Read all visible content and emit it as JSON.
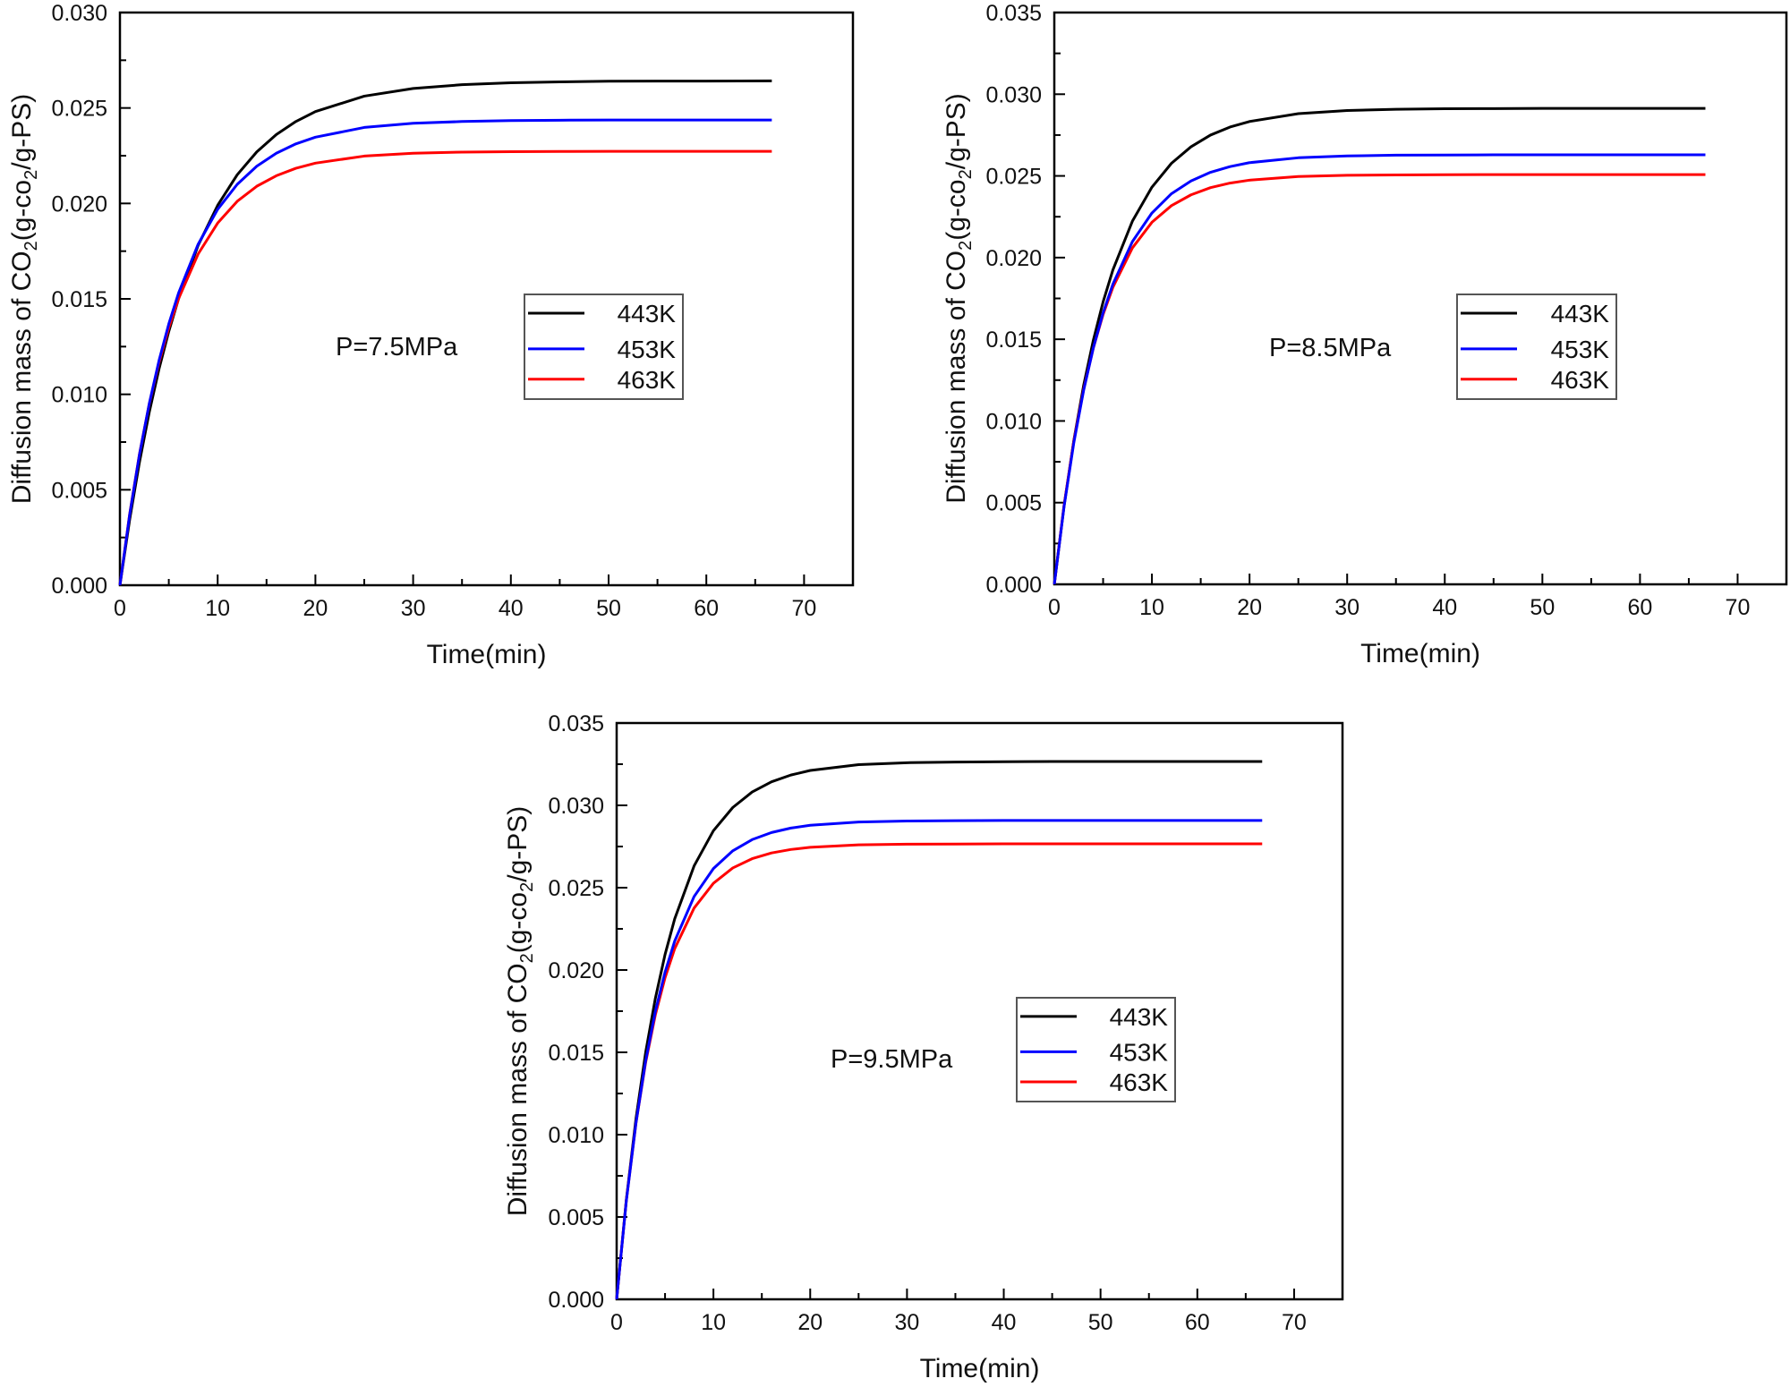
{
  "chart_data": [
    {
      "type": "line",
      "annotation": "P=7.5MPa",
      "xlabel": "Time(min)",
      "ylabel_parts": [
        "Diffusion mass of CO",
        "2",
        "(g-co",
        "2",
        "/g-PS)"
      ],
      "xlim": [
        0,
        75
      ],
      "ylim": [
        0,
        0.03
      ],
      "xticks": [
        0,
        10,
        20,
        30,
        40,
        50,
        60,
        70
      ],
      "xtick_labels": [
        "0",
        "10",
        "20",
        "30",
        "40",
        "50",
        "60",
        "70"
      ],
      "yticks": [
        0,
        0.005,
        0.01,
        0.015,
        0.02,
        0.025,
        0.03
      ],
      "ytick_labels": [
        "0.000",
        "0.005",
        "0.010",
        "0.015",
        "0.020",
        "0.025",
        "0.030"
      ],
      "grid": false,
      "legend_position": "center-right",
      "x": [
        0,
        1,
        2,
        3,
        4,
        5,
        6,
        8,
        10,
        12,
        14,
        16,
        18,
        20,
        25,
        30,
        35,
        40,
        45,
        50,
        55,
        60,
        66.7
      ],
      "series": [
        {
          "name": "443K",
          "color": "#000000",
          "values": [
            0,
            0.00345,
            0.00645,
            0.00906,
            0.01133,
            0.0133,
            0.01501,
            0.0178,
            0.0199,
            0.0215,
            0.0227,
            0.02361,
            0.02429,
            0.02481,
            0.02562,
            0.02602,
            0.02622,
            0.02632,
            0.02637,
            0.0264,
            0.02641,
            0.02641,
            0.02642
          ]
        },
        {
          "name": "453K",
          "color": "#0000ff",
          "values": [
            0,
            0.00371,
            0.00685,
            0.00951,
            0.01177,
            0.01369,
            0.01531,
            0.01786,
            0.01969,
            0.021,
            0.02195,
            0.02263,
            0.02312,
            0.02347,
            0.02398,
            0.0242,
            0.02429,
            0.02434,
            0.02436,
            0.02437,
            0.02437,
            0.02437,
            0.02437
          ]
        },
        {
          "name": "463K",
          "color": "#ff0000",
          "values": [
            0,
            0.00374,
            0.00687,
            0.00949,
            0.01167,
            0.01349,
            0.01501,
            0.01735,
            0.01897,
            0.02011,
            0.0209,
            0.02145,
            0.02184,
            0.02211,
            0.02248,
            0.02263,
            0.02269,
            0.02271,
            0.02272,
            0.02273,
            0.02273,
            0.02273,
            0.02273
          ]
        }
      ]
    },
    {
      "type": "line",
      "annotation": "P=8.5MPa",
      "xlabel": "Time(min)",
      "ylabel_parts": [
        "Diffusion mass of CO",
        "2",
        "(g-co",
        "2",
        "/g-PS)"
      ],
      "xlim": [
        0,
        75
      ],
      "ylim": [
        0,
        0.035
      ],
      "xticks": [
        0,
        10,
        20,
        30,
        40,
        50,
        60,
        70
      ],
      "xtick_labels": [
        "0",
        "10",
        "20",
        "30",
        "40",
        "50",
        "60",
        "70"
      ],
      "yticks": [
        0,
        0.005,
        0.01,
        0.015,
        0.02,
        0.025,
        0.03,
        0.035
      ],
      "ytick_labels": [
        "0.000",
        "0.005",
        "0.010",
        "0.015",
        "0.020",
        "0.025",
        "0.030",
        "0.035"
      ],
      "grid": false,
      "legend_position": "center-right",
      "x": [
        0,
        1,
        2,
        3,
        4,
        5,
        6,
        8,
        10,
        12,
        14,
        16,
        18,
        20,
        25,
        30,
        35,
        40,
        45,
        50,
        55,
        60,
        66.7
      ],
      "series": [
        {
          "name": "443K",
          "color": "#000000",
          "values": [
            0,
            0.0048,
            0.00881,
            0.01216,
            0.01495,
            0.01729,
            0.01924,
            0.02223,
            0.02431,
            0.02577,
            0.02678,
            0.0275,
            0.02799,
            0.02833,
            0.02881,
            0.029,
            0.02908,
            0.02911,
            0.02912,
            0.02913,
            0.02913,
            0.02913,
            0.02913
          ]
        },
        {
          "name": "453K",
          "color": "#0000ff",
          "values": [
            0,
            0.00477,
            0.00867,
            0.01186,
            0.01448,
            0.01662,
            0.01837,
            0.02098,
            0.02273,
            0.02391,
            0.02469,
            0.02522,
            0.02557,
            0.02581,
            0.02611,
            0.02622,
            0.02627,
            0.02628,
            0.02629,
            0.02629,
            0.02629,
            0.02629,
            0.02629
          ]
        },
        {
          "name": "463K",
          "color": "#ff0000",
          "values": [
            0,
            0.00485,
            0.00877,
            0.01192,
            0.01447,
            0.01652,
            0.01818,
            0.02059,
            0.02216,
            0.02318,
            0.02384,
            0.02428,
            0.02456,
            0.02474,
            0.02496,
            0.02504,
            0.02506,
            0.02507,
            0.02508,
            0.02508,
            0.02508,
            0.02508,
            0.02508
          ]
        }
      ]
    },
    {
      "type": "line",
      "annotation": "P=9.5MPa",
      "xlabel": "Time(min)",
      "ylabel_parts": [
        "Diffusion mass of CO",
        "2",
        "(g-co",
        "2",
        "/g-PS)"
      ],
      "xlim": [
        0,
        75
      ],
      "ylim": [
        0,
        0.035
      ],
      "xticks": [
        0,
        10,
        20,
        30,
        40,
        50,
        60,
        70
      ],
      "xtick_labels": [
        "0",
        "10",
        "20",
        "30",
        "40",
        "50",
        "60",
        "70"
      ],
      "yticks": [
        0,
        0.005,
        0.01,
        0.015,
        0.02,
        0.025,
        0.03,
        0.035
      ],
      "ytick_labels": [
        "0.000",
        "0.005",
        "0.010",
        "0.015",
        "0.020",
        "0.025",
        "0.030",
        "0.035"
      ],
      "grid": false,
      "legend_position": "center-right",
      "x": [
        0,
        1,
        2,
        3,
        4,
        5,
        6,
        8,
        10,
        12,
        14,
        16,
        18,
        20,
        25,
        30,
        35,
        40,
        45,
        50,
        55,
        60,
        66.7
      ],
      "series": [
        {
          "name": "443K",
          "color": "#000000",
          "values": [
            0,
            0.00605,
            0.01099,
            0.01501,
            0.01828,
            0.02094,
            0.02311,
            0.02632,
            0.02846,
            0.02987,
            0.03081,
            0.03143,
            0.03184,
            0.03212,
            0.03247,
            0.03259,
            0.03263,
            0.03265,
            0.03266,
            0.03266,
            0.03266,
            0.03266,
            0.03266
          ]
        },
        {
          "name": "453K",
          "color": "#0000ff",
          "values": [
            0,
            0.00598,
            0.01072,
            0.01449,
            0.01749,
            0.01987,
            0.02176,
            0.02446,
            0.02616,
            0.02724,
            0.02792,
            0.02835,
            0.02862,
            0.02879,
            0.02899,
            0.02905,
            0.02907,
            0.02908,
            0.02908,
            0.02908,
            0.02908,
            0.02908,
            0.02908
          ]
        },
        {
          "name": "463K",
          "color": "#ff0000",
          "values": [
            0,
            0.00601,
            0.01072,
            0.0144,
            0.01728,
            0.01953,
            0.0213,
            0.02376,
            0.02527,
            0.0262,
            0.02676,
            0.02711,
            0.02732,
            0.02745,
            0.0276,
            0.02764,
            0.02765,
            0.02766,
            0.02766,
            0.02766,
            0.02766,
            0.02766,
            0.02766
          ]
        }
      ]
    }
  ]
}
